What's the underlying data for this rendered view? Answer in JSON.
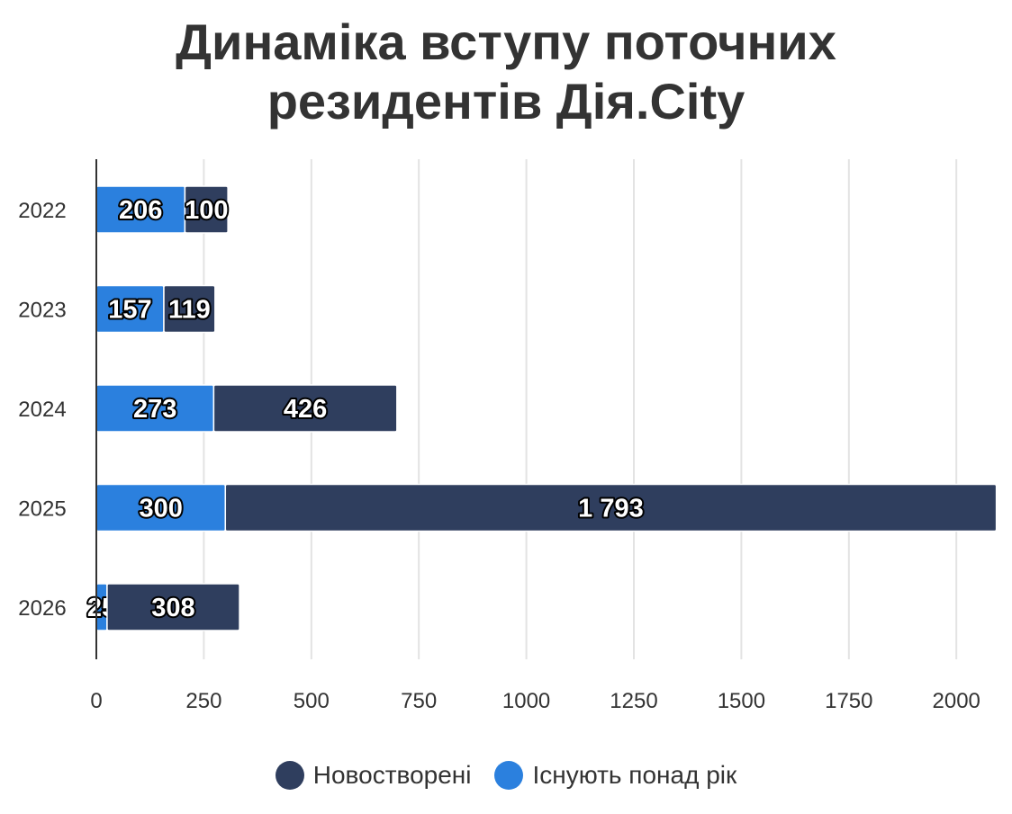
{
  "chart_data": {
    "type": "bar",
    "orientation": "horizontal",
    "stacked": true,
    "title": "Динаміка вступу поточних резидентів Дія.City",
    "title_lines": [
      "Динаміка вступу поточних",
      "резидентів Дія.City"
    ],
    "categories": [
      "2022",
      "2023",
      "2024",
      "2025",
      "2026"
    ],
    "series": [
      {
        "name": "Існують понад рік",
        "color": "#2b80de",
        "values": [
          206,
          157,
          273,
          300,
          25
        ],
        "labels": [
          "206",
          "157",
          "273",
          "300",
          "25"
        ]
      },
      {
        "name": "Новостворені",
        "color": "#2f3e5e",
        "values": [
          100,
          119,
          426,
          1793,
          308
        ],
        "labels": [
          "100",
          "119",
          "426",
          "1 793",
          "308"
        ]
      }
    ],
    "legend_order": [
      "Новостворені",
      "Існують понад рік"
    ],
    "x_ticks": [
      "0",
      "250",
      "500",
      "750",
      "1000",
      "1250",
      "1500",
      "1750",
      "2000"
    ],
    "xlim": [
      0,
      2100
    ],
    "grid": true,
    "legend_position": "bottom",
    "xlabel": "",
    "ylabel": ""
  }
}
